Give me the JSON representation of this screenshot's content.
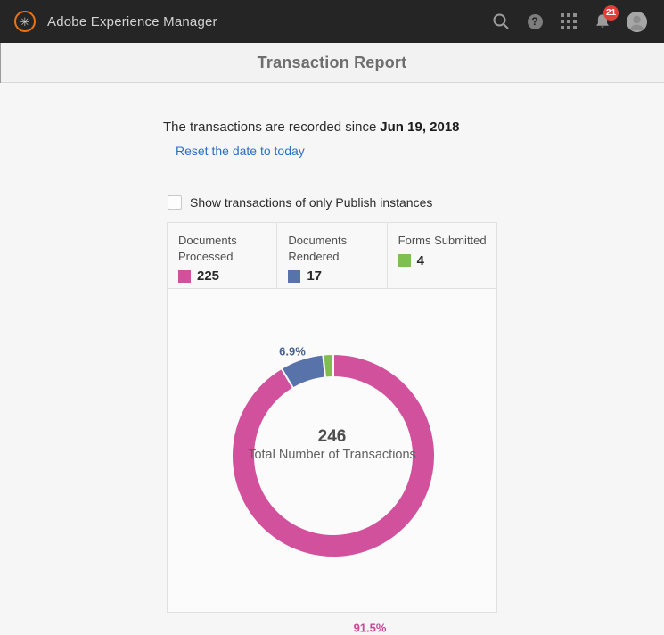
{
  "topbar": {
    "app_name": "Adobe Experience Manager",
    "notification_count": "21",
    "icons": [
      "search",
      "help",
      "apps-grid",
      "notifications-bell",
      "user-avatar"
    ],
    "colors": {
      "bar_bg": "#252525",
      "logo_orange": "#ee7211",
      "badge_red": "#e23f39"
    }
  },
  "header": {
    "title": "Transaction Report"
  },
  "report": {
    "since_text": "The transactions are recorded since",
    "since_date": "Jun 19, 2018",
    "reset_link": "Reset the date to today",
    "publish_checkbox_label": "Show transactions of only Publish instances",
    "checkbox_checked": false
  },
  "stats": [
    {
      "label": "Documents Processed",
      "value": "225",
      "color": "#d1519d"
    },
    {
      "label": "Documents Rendered",
      "value": "17",
      "color": "#5872aa"
    },
    {
      "label": "Forms Submitted",
      "value": "4",
      "color": "#7fbf50"
    }
  ],
  "chart_data": {
    "type": "pie",
    "donut": true,
    "start_at_top": true,
    "clockwise": true,
    "total": 246,
    "center_value": "246",
    "center_label": "Total Number of Transactions",
    "slices": [
      {
        "name": "Documents Processed",
        "value": 225,
        "pct_label": "91.5%",
        "color": "#d1519d",
        "label_color": "#cb4694"
      },
      {
        "name": "Documents Rendered",
        "value": 17,
        "pct_label": "6.9%",
        "color": "#5872aa",
        "label_color": "#46618f"
      },
      {
        "name": "Forms Submitted",
        "value": 4,
        "pct_label": "",
        "color": "#7fbf50",
        "label_color": "#7fbf50"
      }
    ],
    "legend_position": "top",
    "grid": false
  }
}
